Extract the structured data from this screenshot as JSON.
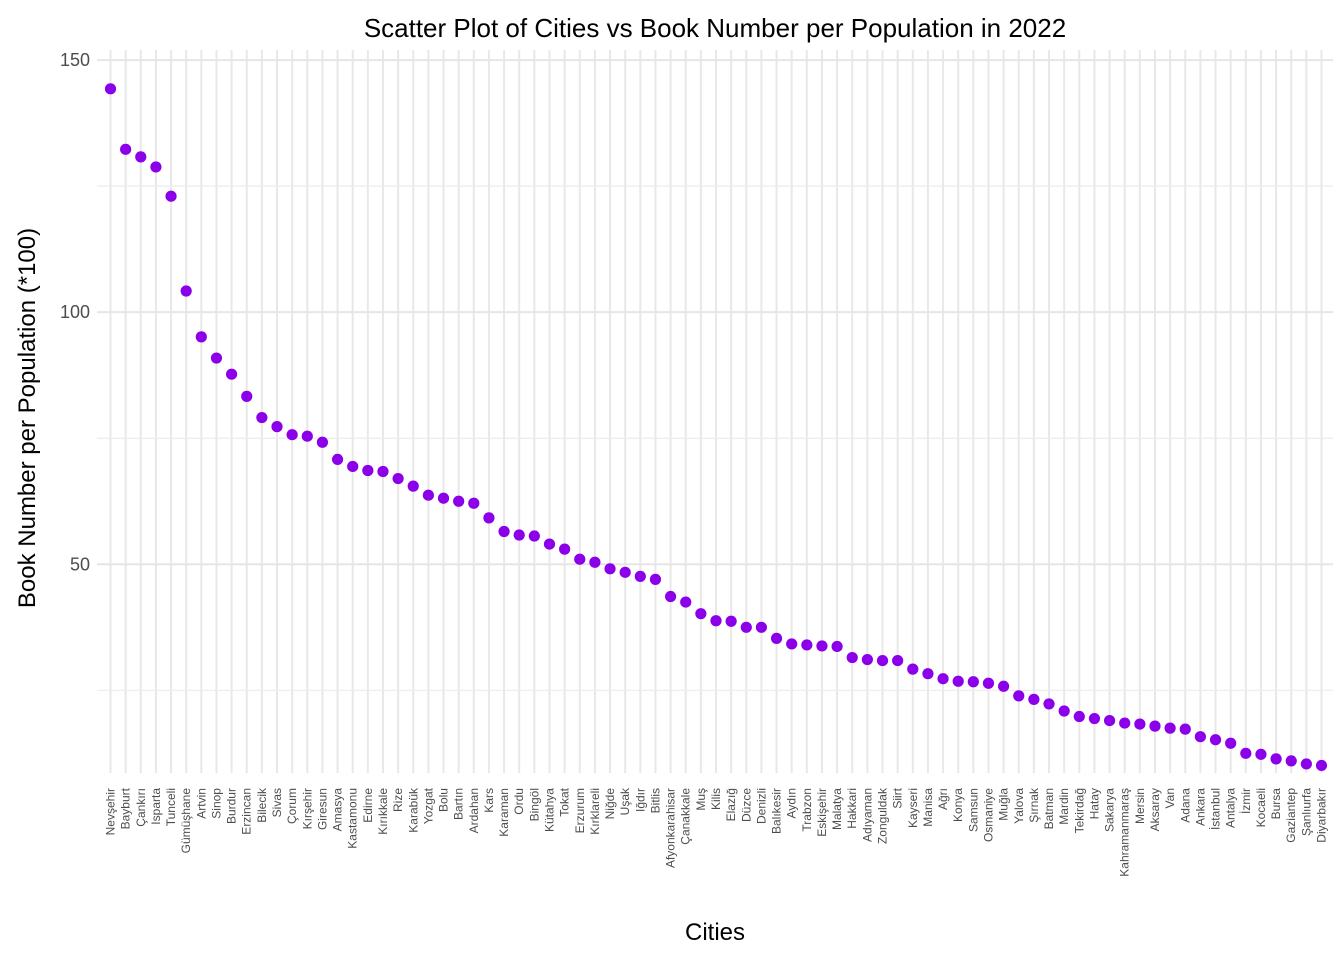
{
  "chart_data": {
    "type": "scatter",
    "title": "Scatter Plot of Cities vs Book Number per Population in 2022",
    "xlabel": "Cities",
    "ylabel": "Book Number per Population (*100)",
    "yticks": [
      50,
      100,
      150
    ],
    "ylim": [
      8.6,
      152
    ],
    "grid": true,
    "point_color": "#8b00e8",
    "categories": [
      "Nevşehir",
      "Bayburt",
      "Çankırı",
      "Isparta",
      "Tunceli",
      "Gümüşhane",
      "Artvin",
      "Sinop",
      "Burdur",
      "Erzincan",
      "Bilecik",
      "Sivas",
      "Çorum",
      "Kırşehir",
      "Giresun",
      "Amasya",
      "Kastamonu",
      "Edirne",
      "Kırıkkale",
      "Rize",
      "Karabük",
      "Yozgat",
      "Bolu",
      "Bartın",
      "Ardahan",
      "Kars",
      "Karaman",
      "Ordu",
      "Bingöl",
      "Kütahya",
      "Tokat",
      "Erzurum",
      "Kırklareli",
      "Niğde",
      "Uşak",
      "Iğdır",
      "Bitlis",
      "Afyonkarahisar",
      "Çanakkale",
      "Muş",
      "Kilis",
      "Elazığ",
      "Düzce",
      "Denizli",
      "Balıkesir",
      "Aydın",
      "Trabzon",
      "Eskişehir",
      "Malatya",
      "Hakkari",
      "Adıyaman",
      "Zonguldak",
      "Siirt",
      "Kayseri",
      "Manisa",
      "Ağrı",
      "Konya",
      "Samsun",
      "Osmaniye",
      "Muğla",
      "Yalova",
      "Şırnak",
      "Batman",
      "Mardin",
      "Tekirdağ",
      "Hatay",
      "Sakarya",
      "Kahramanmaraş",
      "Mersin",
      "Aksaray",
      "Van",
      "Adana",
      "Ankara",
      "İstanbul",
      "Antalya",
      "İzmir",
      "Kocaeli",
      "Bursa",
      "Gaziantep",
      "Şanlıurfa",
      "Diyarbakır"
    ],
    "values": [
      144.3,
      132.3,
      130.8,
      128.8,
      123.0,
      104.2,
      95.1,
      90.9,
      87.7,
      83.3,
      79.1,
      77.3,
      75.7,
      75.4,
      74.2,
      70.8,
      69.4,
      68.6,
      68.4,
      67.0,
      65.5,
      63.7,
      63.1,
      62.5,
      62.1,
      59.2,
      56.5,
      55.8,
      55.6,
      54.0,
      53.0,
      51.0,
      50.4,
      49.1,
      48.4,
      47.6,
      47.0,
      43.6,
      42.5,
      40.2,
      38.8,
      38.7,
      37.5,
      37.5,
      35.3,
      34.2,
      34.0,
      33.8,
      33.7,
      31.5,
      31.1,
      30.9,
      30.9,
      29.2,
      28.3,
      27.3,
      26.8,
      26.7,
      26.4,
      25.8,
      23.9,
      23.2,
      22.3,
      20.9,
      19.8,
      19.4,
      19.0,
      18.5,
      18.3,
      17.9,
      17.5,
      17.3,
      15.8,
      15.2,
      14.5,
      12.5,
      12.3,
      11.4,
      11.0,
      10.4,
      10.1
    ]
  }
}
